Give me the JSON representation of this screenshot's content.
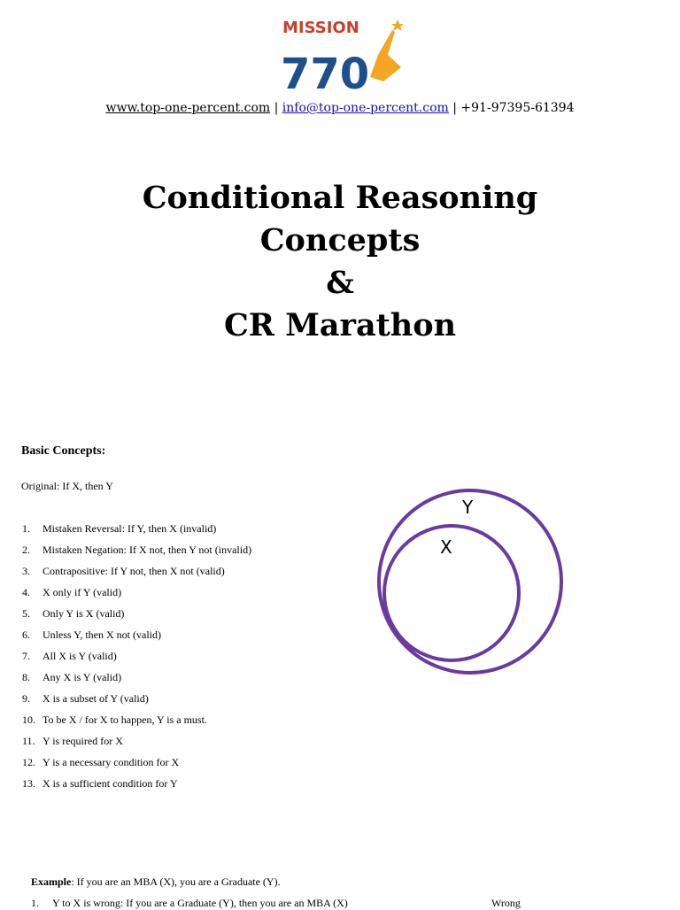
{
  "logo": {
    "text_top": "MISSION",
    "text_bottom": "770",
    "colors": {
      "red": "#c8402a",
      "blue": "#1f4e8c",
      "orange": "#f3a623"
    }
  },
  "contact": {
    "website": "www.top-one-percent.com",
    "sep1": " | ",
    "email": "info@top-one-percent.com",
    "sep2": " | ",
    "phone": "+91-97395-61394"
  },
  "title": {
    "line1": "Conditional Reasoning",
    "line2": "Concepts",
    "line3": "&",
    "line4": "CR Marathon"
  },
  "section": {
    "heading": "Basic Concepts:",
    "original": "Original: If X, then Y"
  },
  "items": [
    {
      "n": "1.",
      "text": "Mistaken Reversal: If Y, then X (invalid)"
    },
    {
      "n": "2.",
      "text": "Mistaken Negation: If X not, then Y not (invalid)"
    },
    {
      "n": "3.",
      "text": "Contrapositive: If Y not, then X not (valid)"
    },
    {
      "n": "4.",
      "text": "X only if Y (valid)"
    },
    {
      "n": "5.",
      "text": "Only Y is X (valid)"
    },
    {
      "n": "6.",
      "text": "Unless Y, then X not (valid)"
    },
    {
      "n": "7.",
      "text": "All X is Y (valid)"
    },
    {
      "n": "8.",
      "text": "Any X is Y (valid)"
    },
    {
      "n": "9.",
      "text": "X is a subset of Y (valid)"
    },
    {
      "n": "10.",
      "text": "To be X / for X to happen, Y is a must."
    },
    {
      "n": "11.",
      "text": "Y is required for X"
    },
    {
      "n": "12.",
      "text": "Y is a necessary condition for X"
    },
    {
      "n": "13.",
      "text": "X is a sufficient condition for Y"
    }
  ],
  "venn": {
    "outer_label": "Y",
    "inner_label": "X",
    "color": "#6b3a9e"
  },
  "example": {
    "label": "Example",
    "text": ": If you are an MBA (X), you are a Graduate (Y).",
    "items": [
      {
        "n": "1.",
        "text": "Y to X is wrong: If you are a Graduate (Y), then you are an MBA (X)",
        "verdict": "Wrong"
      }
    ]
  }
}
